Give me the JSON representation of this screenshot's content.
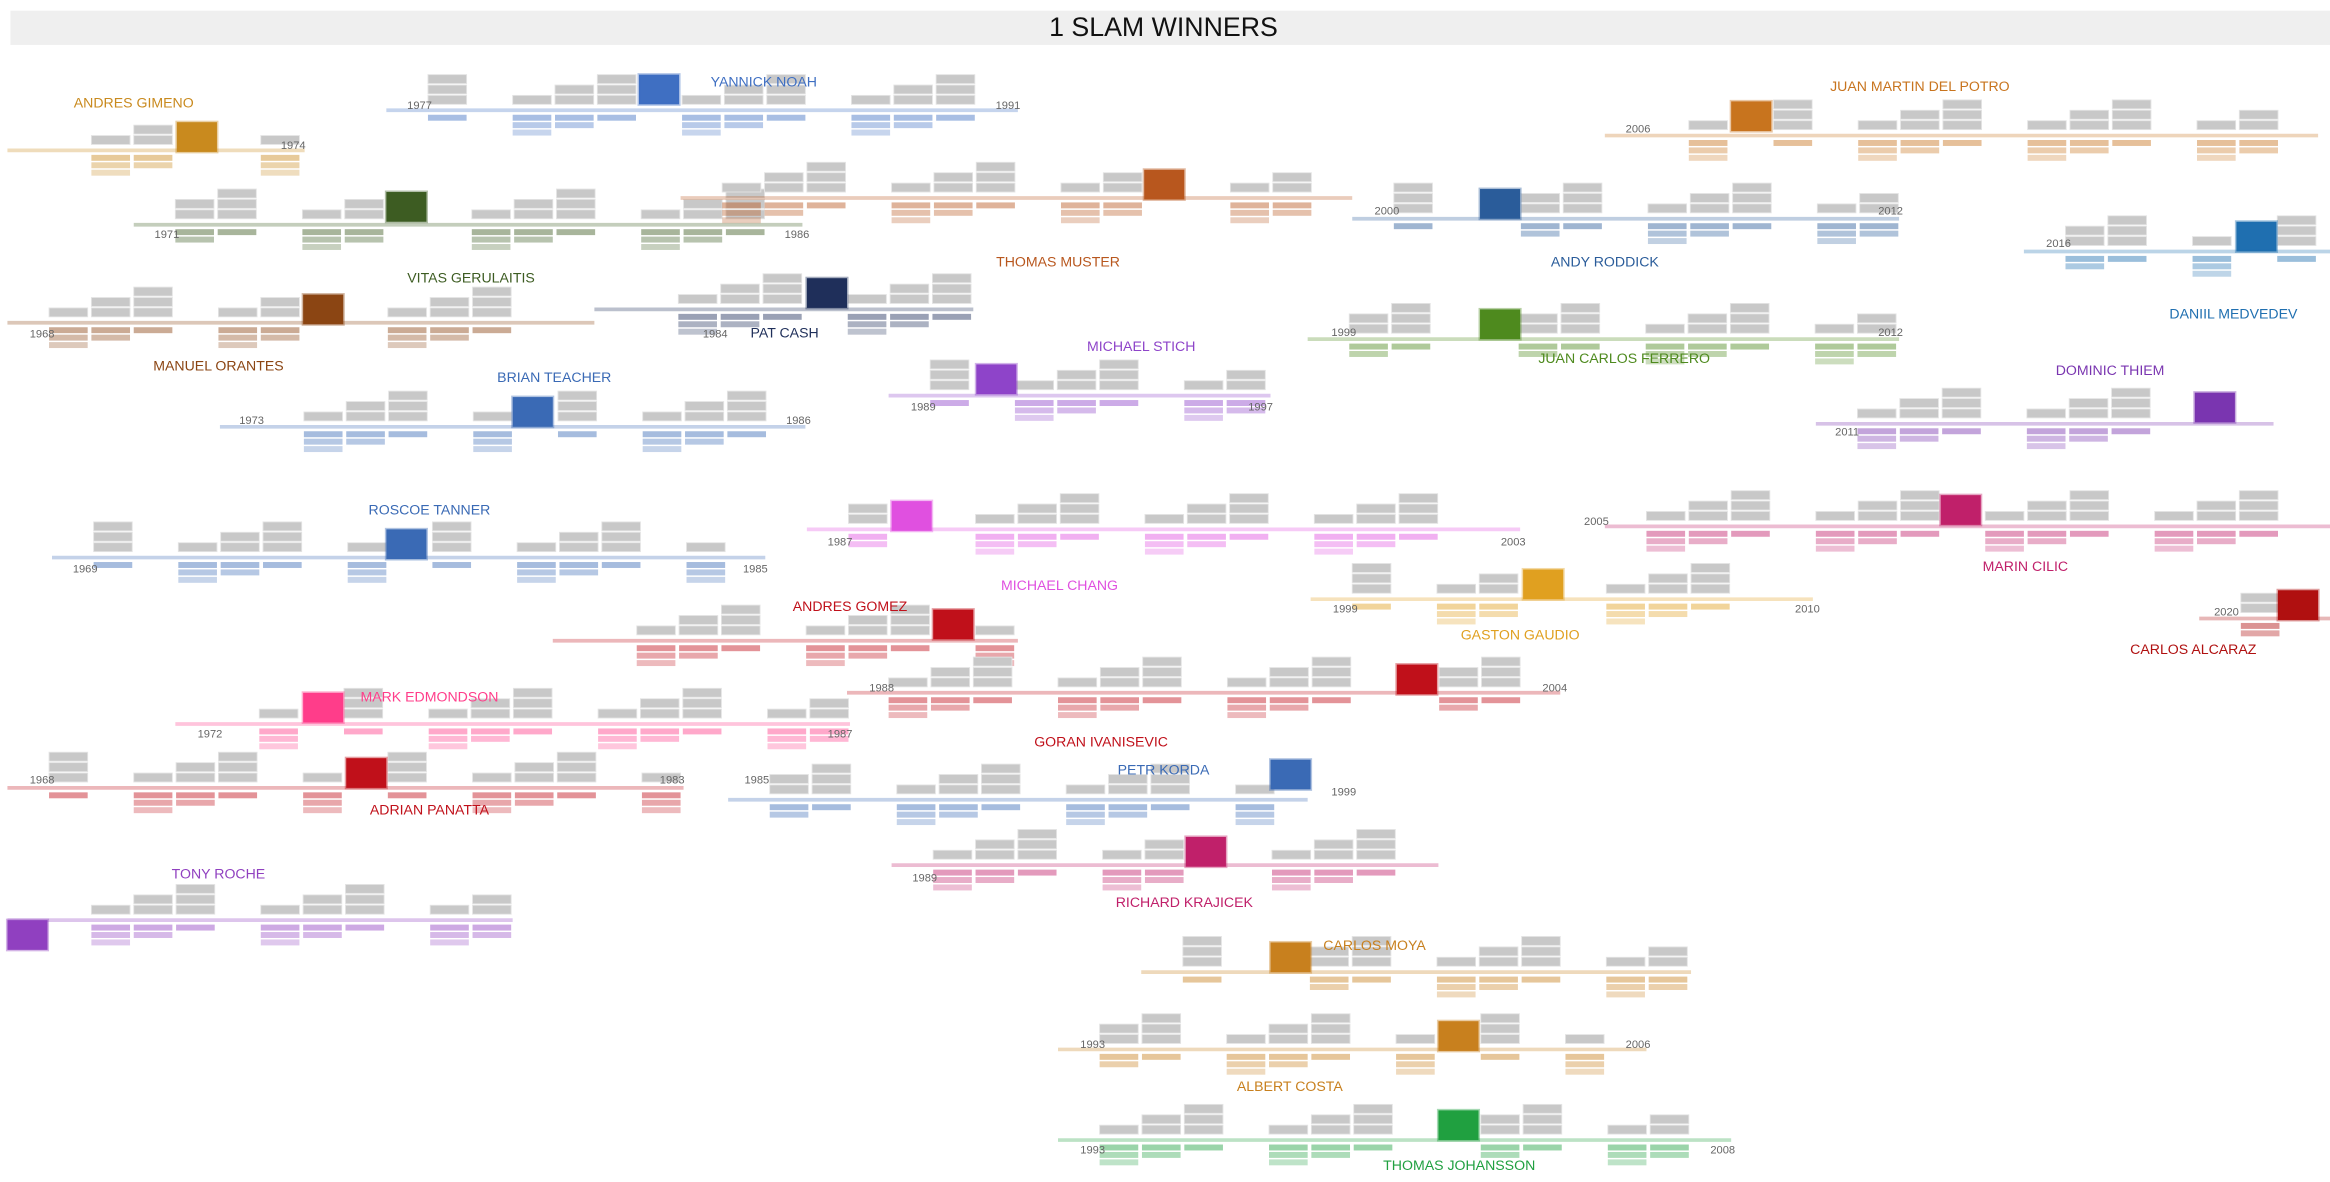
{
  "title": "1 SLAM WINNERS",
  "players": [
    {
      "name": "ANDRES GIMENO",
      "color": "#c98a1e",
      "end": 1974
    },
    {
      "name": "YANNICK NOAH",
      "color": "#3f6fc2",
      "start": 1977,
      "end": 1991
    },
    {
      "name": "VITAS GERULAITIS",
      "color": "#3d5c22",
      "start": 1971,
      "end": 1986
    },
    {
      "name": "THOMAS MUSTER",
      "color": "#b8571e"
    },
    {
      "name": "JUAN MARTIN DEL POTRO",
      "color": "#c8741e",
      "start": 2006
    },
    {
      "name": "ANDY RODDICK",
      "color": "#2a5c9a",
      "start": 2000,
      "end": 2012
    },
    {
      "name": "DANIIL MEDVEDEV",
      "color": "#1f6fb0",
      "start": 2016
    },
    {
      "name": "MANUEL ORANTES",
      "color": "#8b4513",
      "start": 1968
    },
    {
      "name": "PAT CASH",
      "color": "#1f2f5a",
      "end": 1984
    },
    {
      "name": "MICHAEL STICH",
      "color": "#8e44c9",
      "start": 1989,
      "end": 1997
    },
    {
      "name": "JUAN CARLOS FERRERO",
      "color": "#4e8a1e",
      "start": 1999,
      "end": 2012
    },
    {
      "name": "DOMINIC THIEM",
      "color": "#7a35b0",
      "start": 2011
    },
    {
      "name": "BRIAN TEACHER",
      "color": "#3a6ab5",
      "start": 1973,
      "end": 1986
    },
    {
      "name": "ROSCOE TANNER",
      "color": "#3a6ab5",
      "start": 1969,
      "end": 1985
    },
    {
      "name": "MICHAEL CHANG",
      "color": "#e050e0",
      "start": 1987,
      "end": 2003
    },
    {
      "name": "MARIN CILIC",
      "color": "#c0206a",
      "start": 2005
    },
    {
      "name": "ANDRES GOMEZ",
      "color": "#c0101a"
    },
    {
      "name": "GASTON GAUDIO",
      "color": "#e0a020",
      "start": 1999,
      "end": 2010
    },
    {
      "name": "CARLOS ALCARAZ",
      "color": "#b01010",
      "start": 2020
    },
    {
      "name": "GORAN IVANISEVIC",
      "color": "#c0101a",
      "start": 1988,
      "end": 2004
    },
    {
      "name": "MARK EDMONDSON",
      "color": "#ff3d8a",
      "start": 1972,
      "end": 1987
    },
    {
      "name": "ADRIAN PANATTA",
      "color": "#c0101a",
      "start": 1968,
      "end": 1983
    },
    {
      "name": "PETR KORDA",
      "color": "#3a6ab5",
      "start": 1985,
      "end": 1999
    },
    {
      "name": "RICHARD KRAJICEK",
      "color": "#c0206a",
      "start": 1989
    },
    {
      "name": "TONY ROCHE",
      "color": "#9040c0"
    },
    {
      "name": "CARLOS MOYA",
      "color": "#c8801e"
    },
    {
      "name": "ALBERT COSTA",
      "color": "#c8801e",
      "start": 1993,
      "end": 2006
    },
    {
      "name": "THOMAS JOHANSSON",
      "color": "#20a040",
      "start": 1993,
      "end": 2008
    }
  ]
}
